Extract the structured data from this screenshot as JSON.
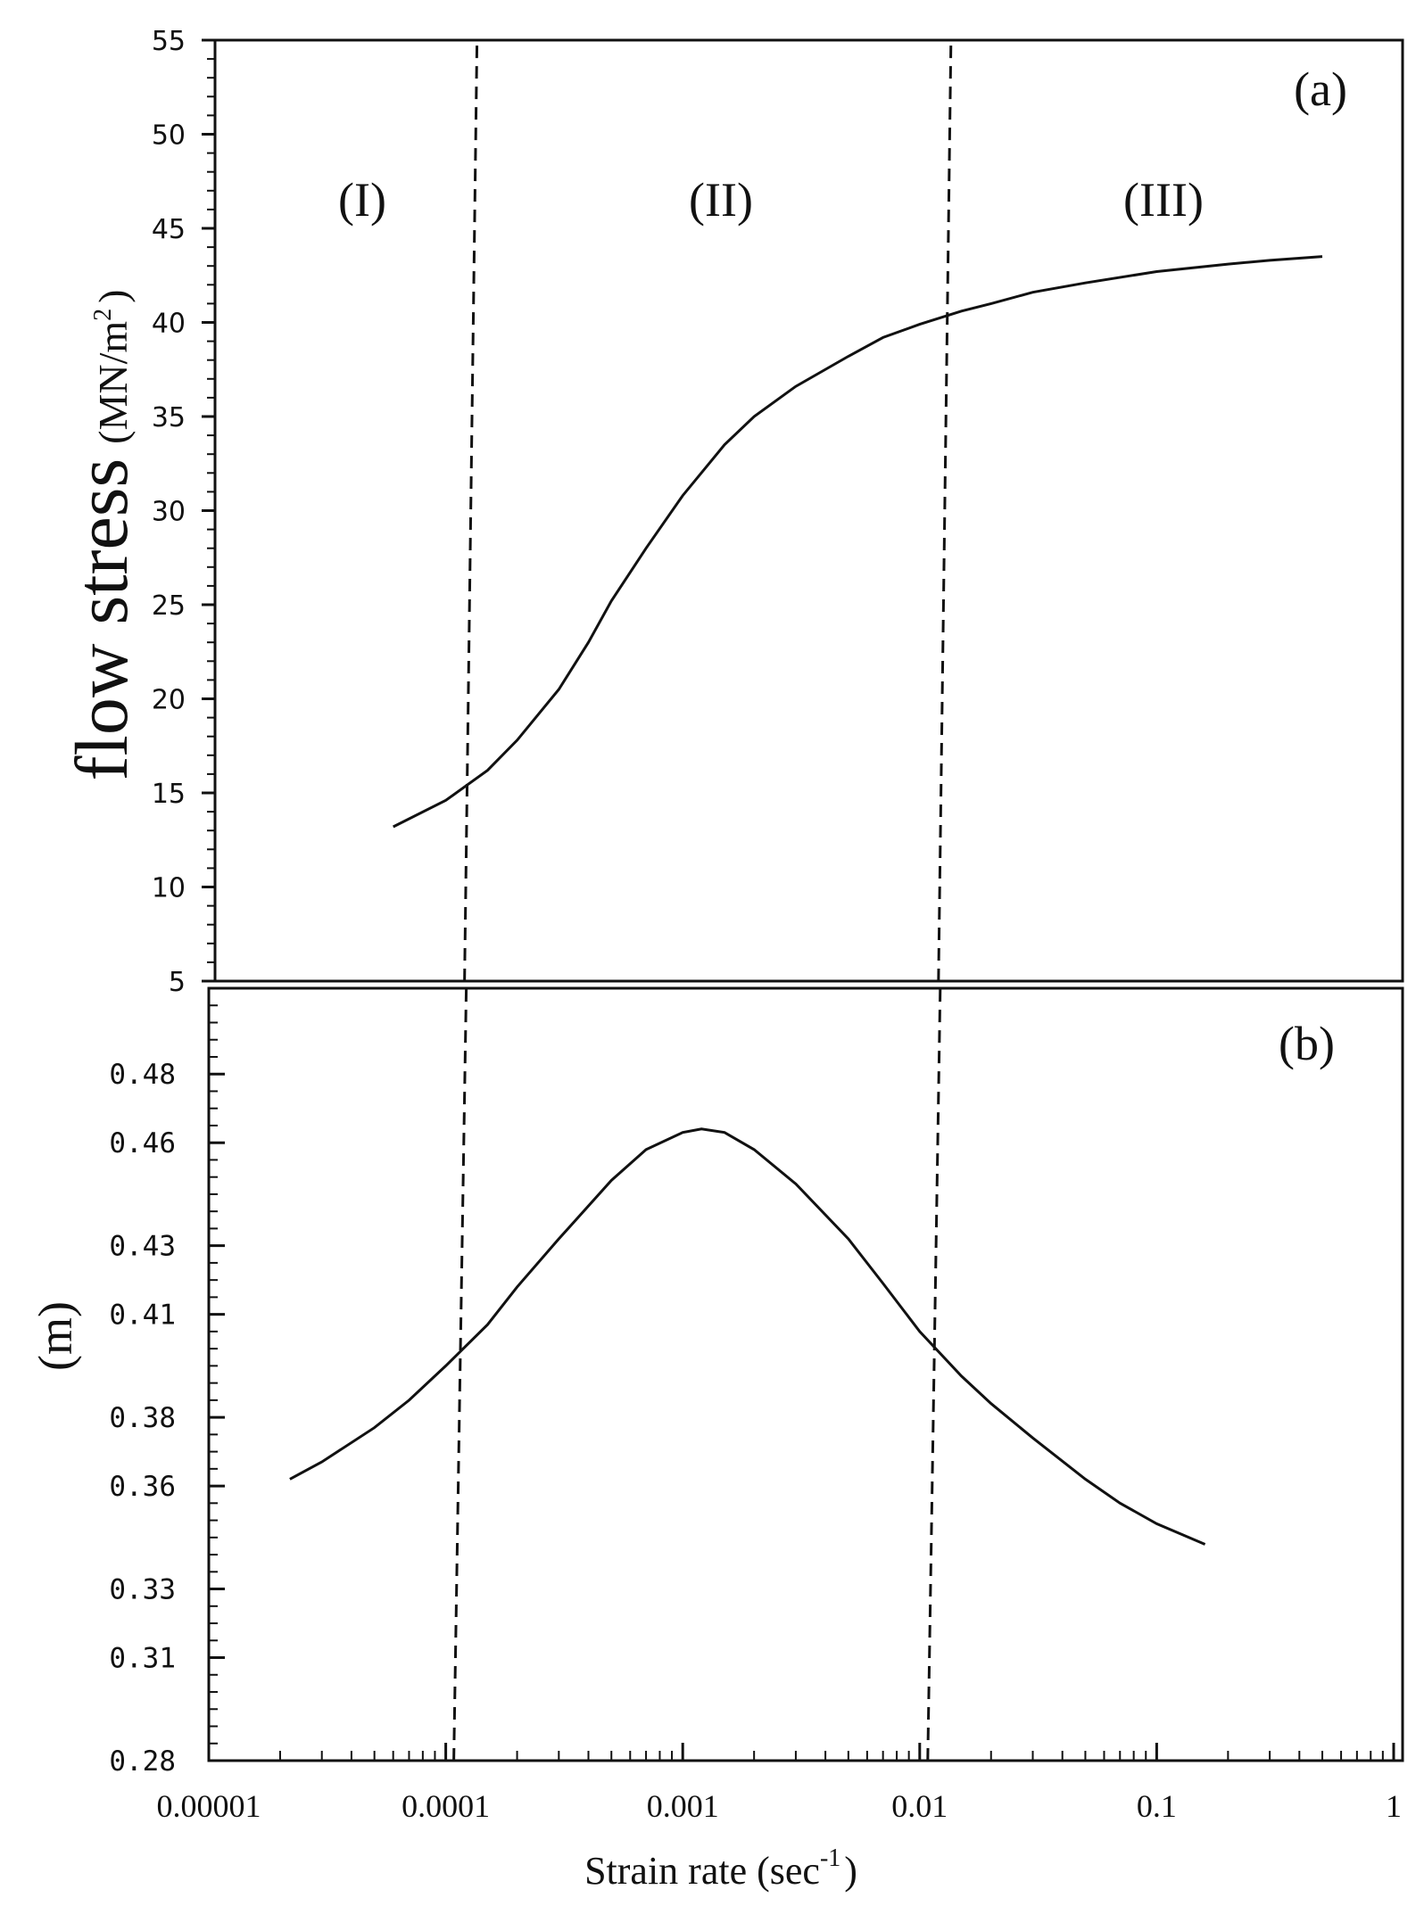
{
  "chart_data": [
    {
      "id": "a",
      "type": "line",
      "panel_label": "(a)",
      "ylabel": "flow stress",
      "ylabel_unit": "(MN/m",
      "ylabel_unit_sup": "2",
      "ylabel_unit_close": ")",
      "xscale": "log",
      "xlim": [
        1e-05,
        1
      ],
      "ylim": [
        5,
        55
      ],
      "yticks": [
        "5",
        "10",
        "15",
        "20",
        "25",
        "30",
        "35",
        "40",
        "45",
        "50",
        "55"
      ],
      "regions": [
        "(I)",
        "(II)",
        "(III)"
      ],
      "boundaries": [
        0.00012,
        0.012
      ],
      "series": [
        {
          "x": [
            6e-05,
            0.0001,
            0.00015,
            0.0002,
            0.0003,
            0.0004,
            0.0005,
            0.0007,
            0.001,
            0.0015,
            0.002,
            0.003,
            0.005,
            0.007,
            0.01,
            0.015,
            0.02,
            0.03,
            0.05,
            0.1,
            0.2,
            0.3,
            0.5
          ],
          "y": [
            13.2,
            14.6,
            16.2,
            17.8,
            20.5,
            23.0,
            25.2,
            28.0,
            30.8,
            33.5,
            35.0,
            36.6,
            38.2,
            39.2,
            39.9,
            40.6,
            41.0,
            41.6,
            42.1,
            42.7,
            43.1,
            43.3,
            43.5
          ]
        }
      ]
    },
    {
      "id": "b",
      "type": "line",
      "panel_label": "(b)",
      "ylabel": "(m)",
      "xlabel": "Strain rate  (sec",
      "xlabel_sup": "-1",
      "xlabel_close": ")",
      "xscale": "log",
      "xlim": [
        1e-05,
        1
      ],
      "xticks": [
        "0.00001",
        "0.0001",
        "0.001",
        "0.01",
        "0.1",
        "1"
      ],
      "ylim": [
        0.28,
        0.505
      ],
      "yticks": [
        "0.28",
        "0.31",
        "0.33",
        "0.36",
        "0.38",
        "0.41",
        "0.43",
        "0.46",
        "0.48"
      ],
      "boundaries": [
        0.00011,
        0.011
      ],
      "series": [
        {
          "x": [
            2.2e-05,
            3e-05,
            5e-05,
            7e-05,
            0.0001,
            0.00015,
            0.0002,
            0.0003,
            0.0005,
            0.0007,
            0.001,
            0.0012,
            0.0015,
            0.002,
            0.003,
            0.005,
            0.007,
            0.01,
            0.015,
            0.02,
            0.03,
            0.05,
            0.07,
            0.1,
            0.16
          ],
          "y": [
            0.362,
            0.367,
            0.377,
            0.385,
            0.395,
            0.407,
            0.418,
            0.432,
            0.449,
            0.458,
            0.463,
            0.464,
            0.463,
            0.458,
            0.448,
            0.432,
            0.419,
            0.405,
            0.392,
            0.384,
            0.374,
            0.362,
            0.355,
            0.349,
            0.343
          ]
        }
      ]
    }
  ]
}
